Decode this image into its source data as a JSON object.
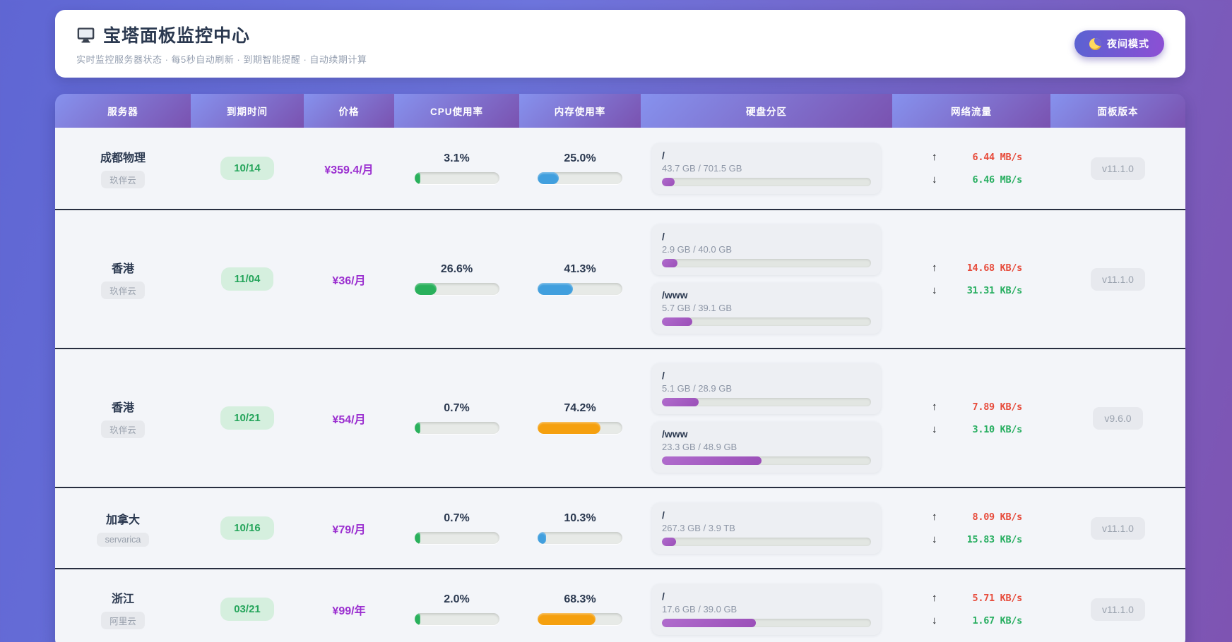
{
  "page": {
    "title": "宝塔面板监控中心",
    "subtitle": "实时监控服务器状态 · 每5秒自动刷新 · 到期智能提醒 · 自动续期计算",
    "night_mode_label": "夜间模式"
  },
  "table": {
    "columns": [
      "服务器",
      "到期时间",
      "价格",
      "CPU使用率",
      "内存使用率",
      "硬盘分区",
      "网络流量",
      "面板版本"
    ],
    "rows": [
      {
        "name": "成都物理",
        "provider": "玖伴云",
        "expiry": "10/14",
        "price": "¥359.4/月",
        "cpu": {
          "label": "3.1%",
          "pct": 3.1,
          "color": "green"
        },
        "mem": {
          "label": "25.0%",
          "pct": 25.0,
          "color": "blue"
        },
        "disks": [
          {
            "mount": "/",
            "usage": "43.7 GB / 701.5 GB",
            "pct": 6.2
          }
        ],
        "net": {
          "up": "6.44 MB/s",
          "down": "6.46 MB/s"
        },
        "version": "v11.1.0"
      },
      {
        "name": "香港",
        "provider": "玖伴云",
        "expiry": "11/04",
        "price": "¥36/月",
        "cpu": {
          "label": "26.6%",
          "pct": 26.6,
          "color": "green"
        },
        "mem": {
          "label": "41.3%",
          "pct": 41.3,
          "color": "blue"
        },
        "disks": [
          {
            "mount": "/",
            "usage": "2.9 GB / 40.0 GB",
            "pct": 7.3
          },
          {
            "mount": "/www",
            "usage": "5.7 GB / 39.1 GB",
            "pct": 14.6
          }
        ],
        "net": {
          "up": "14.68 KB/s",
          "down": "31.31 KB/s"
        },
        "version": "v11.1.0"
      },
      {
        "name": "香港",
        "provider": "玖伴云",
        "expiry": "10/21",
        "price": "¥54/月",
        "cpu": {
          "label": "0.7%",
          "pct": 0.7,
          "color": "green"
        },
        "mem": {
          "label": "74.2%",
          "pct": 74.2,
          "color": "orange"
        },
        "disks": [
          {
            "mount": "/",
            "usage": "5.1 GB / 28.9 GB",
            "pct": 17.6
          },
          {
            "mount": "/www",
            "usage": "23.3 GB / 48.9 GB",
            "pct": 47.6
          }
        ],
        "net": {
          "up": "7.89 KB/s",
          "down": "3.10 KB/s"
        },
        "version": "v9.6.0"
      },
      {
        "name": "加拿大",
        "provider": "servarica",
        "expiry": "10/16",
        "price": "¥79/月",
        "cpu": {
          "label": "0.7%",
          "pct": 0.7,
          "color": "green"
        },
        "mem": {
          "label": "10.3%",
          "pct": 10.3,
          "color": "blue"
        },
        "disks": [
          {
            "mount": "/",
            "usage": "267.3 GB / 3.9 TB",
            "pct": 6.7
          }
        ],
        "net": {
          "up": "8.09 KB/s",
          "down": "15.83 KB/s"
        },
        "version": "v11.1.0"
      },
      {
        "name": "浙江",
        "provider": "阿里云",
        "expiry": "03/21",
        "price": "¥99/年",
        "cpu": {
          "label": "2.0%",
          "pct": 2.0,
          "color": "green"
        },
        "mem": {
          "label": "68.3%",
          "pct": 68.3,
          "color": "orange"
        },
        "disks": [
          {
            "mount": "/",
            "usage": "17.6 GB / 39.0 GB",
            "pct": 45.1
          }
        ],
        "net": {
          "up": "5.71 KB/s",
          "down": "1.67 KB/s"
        },
        "version": "v11.1.0"
      }
    ]
  },
  "colors": {
    "green": "#29b05c",
    "blue": "#419fde",
    "orange": "#f5a00f",
    "disk": "#a25fc2"
  }
}
